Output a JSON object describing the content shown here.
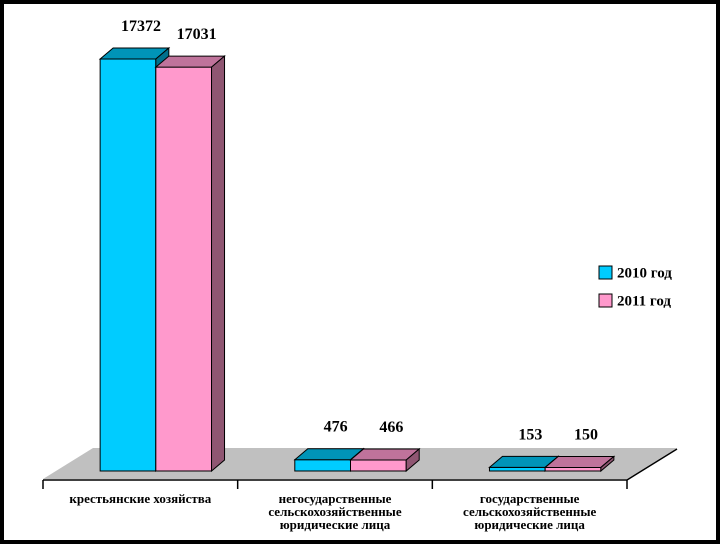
{
  "frame": {
    "border_color": "#000000",
    "background_color": "#FFFFFF"
  },
  "chart_data": {
    "type": "bar",
    "style": "3d-clustered-column",
    "title": "",
    "xlabel": "",
    "ylabel": "",
    "grid": false,
    "y_axis_visible": false,
    "categories": [
      "крестьянские хозяйства",
      "негосударственные сельскохозяйственные юридические лица",
      "государственные сельскохозяйственные юридические лица"
    ],
    "category_label_lines": [
      [
        "крестьянские хозяйства"
      ],
      [
        "негосударственные",
        "сельскохозяйственные",
        "юридические лица"
      ],
      [
        "государственные",
        "сельскохозяйственные",
        "юридические лица"
      ]
    ],
    "series": [
      {
        "name": "2010 год",
        "values": [
          17372,
          476,
          153
        ],
        "color": "#00CCFF",
        "top_color": "#0094B8",
        "side_color": "#00708C"
      },
      {
        "name": "2011 год",
        "values": [
          17031,
          466,
          150
        ],
        "color": "#FF99CC",
        "top_color": "#BF739B",
        "side_color": "#8F5672"
      }
    ],
    "data_labels_shown": true,
    "ylim": [
      0,
      17372
    ],
    "legend": {
      "position": "right",
      "entries": [
        "2010 год",
        "2011 год"
      ]
    },
    "floor_color": "#C0C0C0",
    "outline_color": "#000000",
    "text_color": "#000000"
  }
}
